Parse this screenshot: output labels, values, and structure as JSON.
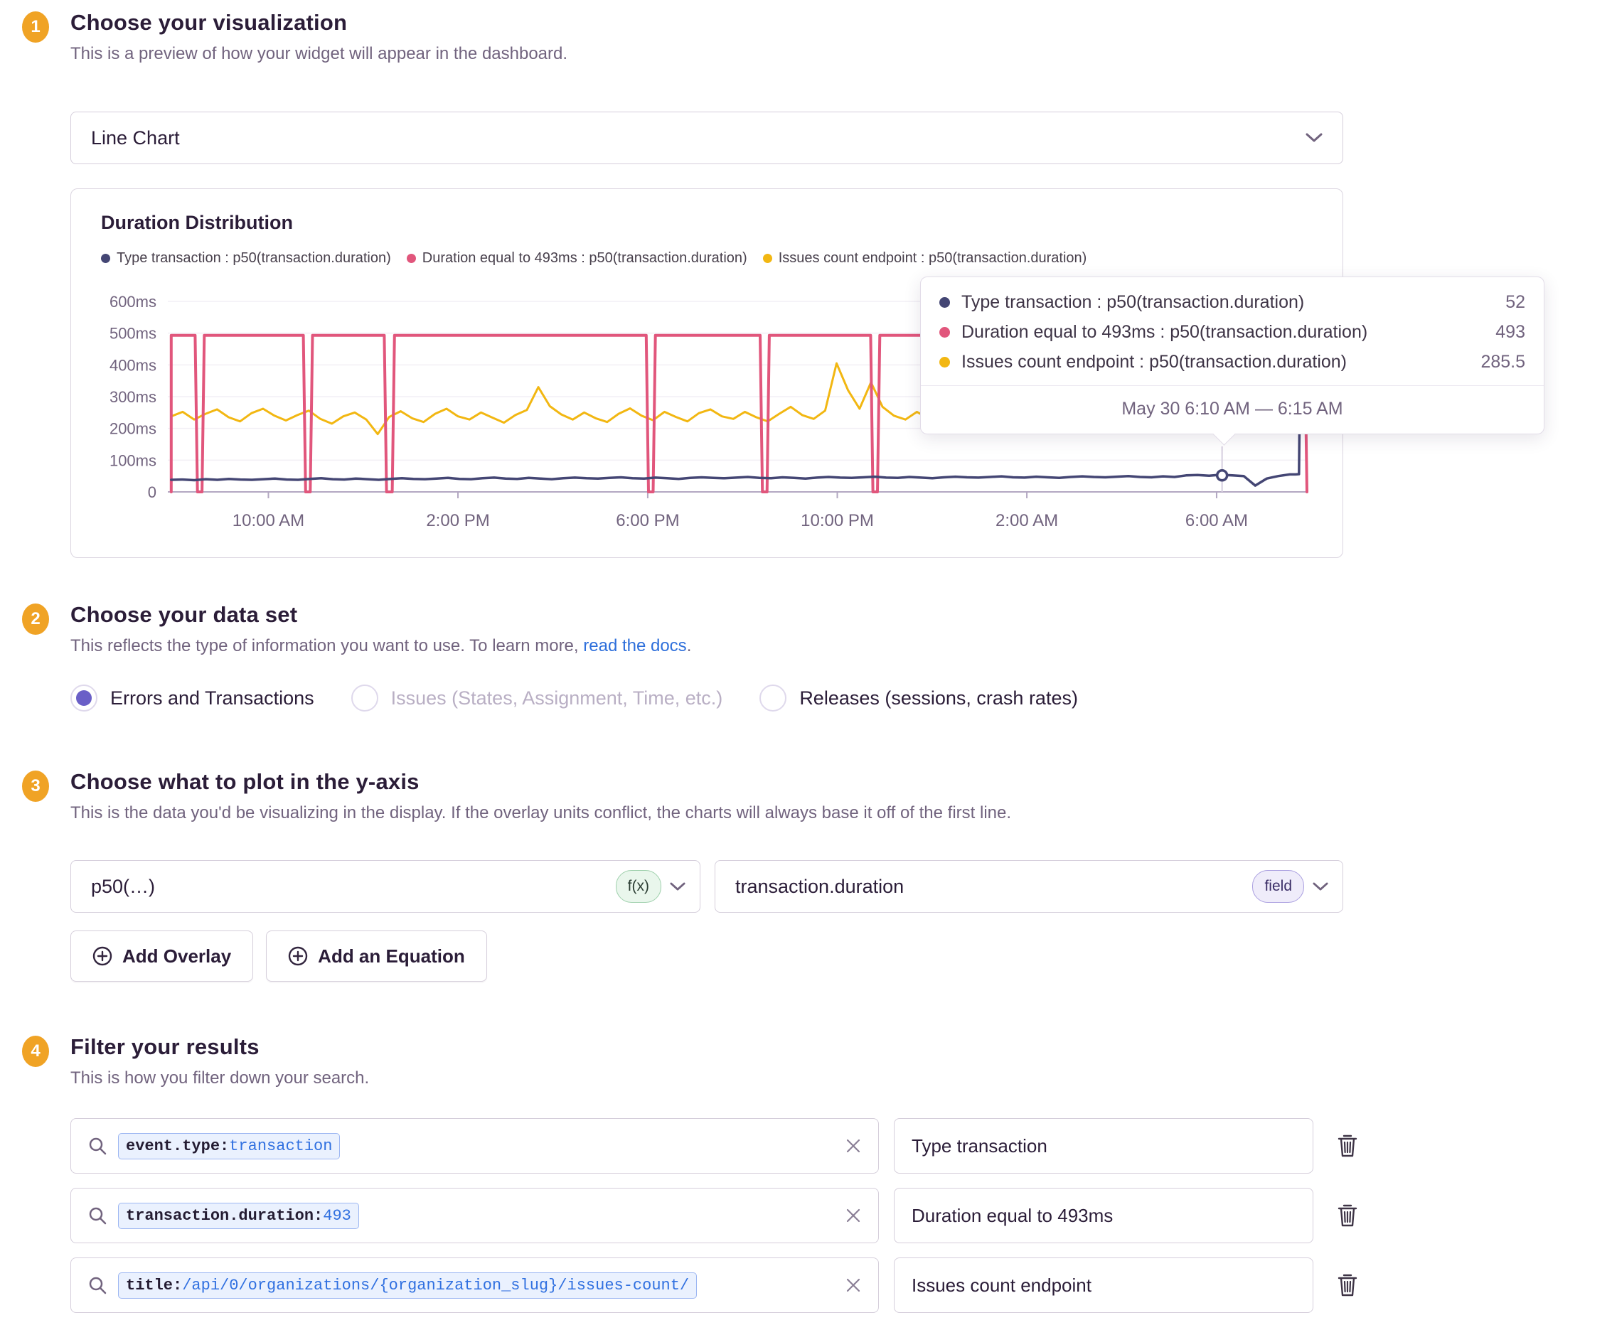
{
  "colors": {
    "badge": "#F0A325",
    "link": "#2E6FDB",
    "radio_selected": "#6A5FC7"
  },
  "sections": {
    "visualization": {
      "number": "1",
      "title": "Choose your visualization",
      "subtitle": "This is a preview of how your widget will appear in the dashboard.",
      "chart_type_select": {
        "value": "Line Chart"
      }
    },
    "dataset": {
      "number": "2",
      "title": "Choose your data set",
      "subtitle_prefix": "This reflects the type of information you want to use. To learn more, ",
      "subtitle_link": "read the docs",
      "subtitle_suffix": ".",
      "options": [
        {
          "label": "Errors and Transactions",
          "state": "selected"
        },
        {
          "label": "Issues (States, Assignment, Time, etc.)",
          "state": "disabled"
        },
        {
          "label": "Releases (sessions, crash rates)",
          "state": "unselected"
        }
      ]
    },
    "yaxis": {
      "number": "3",
      "title": "Choose what to plot in the y-axis",
      "subtitle": "This is the data you'd be visualizing in the display. If the overlay units conflict, the charts will always base it off of the first line.",
      "function_select": {
        "value": "p50(…)",
        "badge": "f(x)"
      },
      "field_select": {
        "value": "transaction.duration",
        "badge": "field"
      },
      "add_overlay_label": "Add Overlay",
      "add_equation_label": "Add an Equation"
    },
    "filters": {
      "number": "4",
      "title": "Filter your results",
      "subtitle": "This is how you filter down your search.",
      "rows": [
        {
          "key": "event.type:",
          "value": "transaction",
          "name": "Type transaction"
        },
        {
          "key": "transaction.duration:",
          "value": "493",
          "name": "Duration equal to 493ms"
        },
        {
          "key": "title:",
          "value": "/api/0/organizations/{organization_slug}/issues-count/",
          "name": "Issues count endpoint"
        }
      ]
    }
  },
  "tooltip": {
    "rows": [
      {
        "label": "Type transaction : p50(transaction.duration)",
        "value": "52",
        "color": "#444674"
      },
      {
        "label": "Duration equal to 493ms : p50(transaction.duration)",
        "value": "493",
        "color": "#E1567C"
      },
      {
        "label": "Issues count endpoint : p50(transaction.duration)",
        "value": "285.5",
        "color": "#F2B712"
      }
    ],
    "date_range": "May 30 6:10 AM — 6:15 AM"
  },
  "chart_data": {
    "type": "line",
    "title": "Duration Distribution",
    "unit": "ms",
    "ylim": [
      0,
      600
    ],
    "grid": true,
    "legend_position": "top",
    "yticks": [
      "0",
      "100ms",
      "200ms",
      "300ms",
      "400ms",
      "500ms",
      "600ms"
    ],
    "xticks": [
      {
        "label": "10:00 AM",
        "f": 0.0883
      },
      {
        "label": "2:00 PM",
        "f": 0.2547
      },
      {
        "label": "6:00 PM",
        "f": 0.4213
      },
      {
        "label": "10:00 PM",
        "f": 0.5877
      },
      {
        "label": "2:00 AM",
        "f": 0.7541
      },
      {
        "label": "6:00 AM",
        "f": 0.9207
      }
    ],
    "hover": {
      "f": 0.9255,
      "value": 52
    },
    "series": [
      {
        "name": "Type transaction : p50(transaction.duration)",
        "color": "#444674",
        "width": 3.5,
        "x0": 0.003,
        "x1": 0.985,
        "values": [
          38,
          39,
          37,
          40,
          38,
          41,
          39,
          38,
          40,
          42,
          39,
          38,
          41,
          43,
          40,
          39,
          42,
          40,
          38,
          41,
          43,
          41,
          40,
          42,
          44,
          41,
          40,
          43,
          45,
          42,
          41,
          44,
          42,
          40,
          43,
          45,
          43,
          42,
          44,
          46,
          43,
          42,
          45,
          43,
          41,
          44,
          46,
          44,
          43,
          45,
          47,
          44,
          43,
          46,
          44,
          42,
          45,
          47,
          45,
          44,
          46,
          48,
          45,
          44,
          47,
          45,
          43,
          46,
          48,
          46,
          45,
          47,
          49,
          46,
          45,
          48,
          46,
          44,
          47,
          49,
          47,
          46,
          48,
          50,
          47,
          46,
          49,
          47,
          52,
          53,
          51,
          54,
          52,
          50,
          20,
          42,
          50,
          55
        ],
        "points": [
          [
            0.99,
            55
          ],
          [
            0.993,
            56
          ],
          [
            0.9945,
            585
          ]
        ]
      },
      {
        "name": "Duration equal to 493ms : p50(transaction.duration)",
        "color": "#E1567C",
        "width": 4,
        "points": [
          [
            0.003,
            0
          ],
          [
            0.003,
            493
          ],
          [
            0.024,
            493
          ],
          [
            0.026,
            0
          ],
          [
            0.03,
            0
          ],
          [
            0.032,
            493
          ],
          [
            0.119,
            493
          ],
          [
            0.121,
            0
          ],
          [
            0.125,
            0
          ],
          [
            0.127,
            493
          ],
          [
            0.19,
            493
          ],
          [
            0.192,
            0
          ],
          [
            0.197,
            0
          ],
          [
            0.199,
            493
          ],
          [
            0.42,
            493
          ],
          [
            0.422,
            0
          ],
          [
            0.426,
            0
          ],
          [
            0.428,
            493
          ],
          [
            0.52,
            493
          ],
          [
            0.522,
            0
          ],
          [
            0.526,
            0
          ],
          [
            0.528,
            493
          ],
          [
            0.617,
            493
          ],
          [
            0.619,
            0
          ],
          [
            0.623,
            0
          ],
          [
            0.625,
            493
          ],
          [
            0.998,
            493
          ],
          [
            1.0,
            0
          ]
        ]
      },
      {
        "name": "Issues count endpoint : p50(transaction.duration)",
        "color": "#F2B712",
        "width": 3,
        "x0": 0.003,
        "x1": 1.0,
        "values": [
          238,
          252,
          228,
          246,
          260,
          235,
          222,
          248,
          262,
          240,
          225,
          242,
          256,
          230,
          215,
          238,
          250,
          228,
          182,
          236,
          254,
          232,
          220,
          246,
          262,
          238,
          228,
          250,
          234,
          218,
          242,
          258,
          330,
          270,
          244,
          228,
          250,
          232,
          220,
          246,
          263,
          240,
          226,
          252,
          236,
          222,
          248,
          260,
          238,
          230,
          252,
          235,
          222,
          246,
          268,
          242,
          230,
          256,
          405,
          320,
          262,
          345,
          268,
          240,
          228,
          252,
          232,
          246,
          224,
          258,
          242,
          230,
          248,
          266,
          238,
          226,
          252,
          240,
          230,
          262,
          244,
          232,
          220,
          246,
          258,
          236,
          228,
          250,
          268,
          242,
          230,
          218,
          244,
          256,
          238,
          252,
          286,
          262,
          248,
          285.5
        ]
      }
    ]
  }
}
